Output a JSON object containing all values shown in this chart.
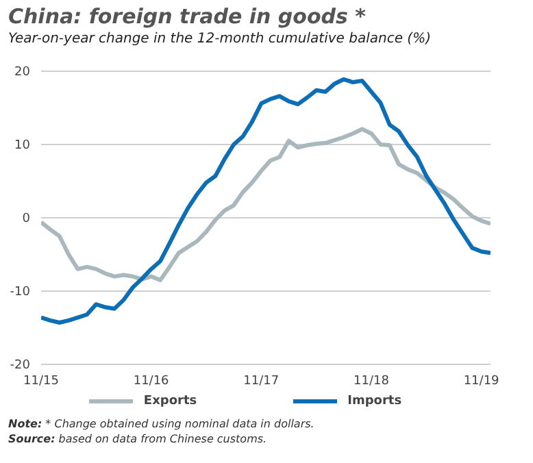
{
  "chart_data": {
    "type": "line",
    "title": "China: foreign trade in goods *",
    "subtitle": "Year-on-year change in the 12-month cumulative balance (%)",
    "x": [
      "2015-11",
      "2015-12",
      "2016-01",
      "2016-02",
      "2016-03",
      "2016-04",
      "2016-05",
      "2016-06",
      "2016-07",
      "2016-08",
      "2016-09",
      "2016-10",
      "2016-11",
      "2016-12",
      "2017-01",
      "2017-02",
      "2017-03",
      "2017-04",
      "2017-05",
      "2017-06",
      "2017-07",
      "2017-08",
      "2017-09",
      "2017-10",
      "2017-11",
      "2017-12",
      "2018-01",
      "2018-02",
      "2018-03",
      "2018-04",
      "2018-05",
      "2018-06",
      "2018-07",
      "2018-08",
      "2018-09",
      "2018-10",
      "2018-11",
      "2018-12",
      "2019-01",
      "2019-02",
      "2019-03",
      "2019-04",
      "2019-05",
      "2019-06",
      "2019-07",
      "2019-08",
      "2019-09",
      "2019-10",
      "2019-11",
      "2019-12"
    ],
    "series": [
      {
        "name": "Exports",
        "color": "#a8b8bc",
        "values": [
          -0.6,
          -1.6,
          -2.5,
          -5.0,
          -7.0,
          -6.7,
          -7.0,
          -7.6,
          -8.0,
          -7.8,
          -8.0,
          -8.4,
          -8.0,
          -8.5,
          -6.7,
          -4.8,
          -4.0,
          -3.2,
          -1.9,
          -0.3,
          1.0,
          1.7,
          3.5,
          4.8,
          6.4,
          7.8,
          8.3,
          10.5,
          9.6,
          9.9,
          10.1,
          10.2,
          10.6,
          11.0,
          11.5,
          12.1,
          11.5,
          10.0,
          9.9,
          7.3,
          6.6,
          6.1,
          5.1,
          4.1,
          3.4,
          2.5,
          1.3,
          0.2,
          -0.4,
          -0.8
        ]
      },
      {
        "name": "Imports",
        "color": "#0e6eb5",
        "values": [
          -13.6,
          -14.0,
          -14.3,
          -14.0,
          -13.6,
          -13.2,
          -11.8,
          -12.2,
          -12.4,
          -11.2,
          -9.5,
          -8.3,
          -7.0,
          -5.9,
          -3.5,
          -1.0,
          1.3,
          3.2,
          4.8,
          5.7,
          8.0,
          10.0,
          11.1,
          13.1,
          15.6,
          16.2,
          16.6,
          15.9,
          15.5,
          16.4,
          17.4,
          17.2,
          18.3,
          18.9,
          18.5,
          18.7,
          17.2,
          15.7,
          12.7,
          11.8,
          9.9,
          8.3,
          5.7,
          3.8,
          1.9,
          -0.3,
          -2.2,
          -4.1,
          -4.6,
          -4.8
        ]
      }
    ],
    "xlim": [
      "2015-11",
      "2019-12"
    ],
    "xticks": [
      {
        "value": "2015-11",
        "label": "11/15"
      },
      {
        "value": "2016-11",
        "label": "11/16"
      },
      {
        "value": "2017-11",
        "label": "11/17"
      },
      {
        "value": "2018-11",
        "label": "11/18"
      },
      {
        "value": "2019-11",
        "label": "11/19"
      }
    ],
    "ylim": [
      -20,
      20
    ],
    "yticks": [
      -20,
      -10,
      0,
      10,
      20
    ],
    "grid": "y",
    "legend": "bottom",
    "marker": "none",
    "line_style": "solid",
    "annotations": [
      "Note: * Change obtained using nominal data in dollars.",
      "Source: based on data from Chinese customs."
    ]
  }
}
